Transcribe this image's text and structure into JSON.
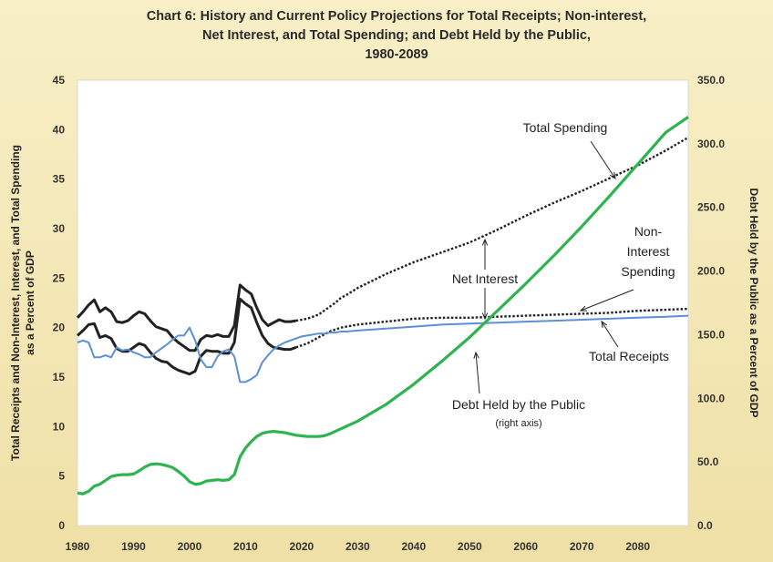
{
  "chart_data": {
    "type": "line",
    "title_lines": [
      "Chart 6:  History and Current Policy Projections for Total Receipts; Non-interest,",
      "Net Interest, and Total Spending; and Debt Held by the Public,",
      "1980-2089"
    ],
    "ylabel_left_lines": [
      "Total Receipts and Non-Interest, Interest, and Total Spending",
      "as a Percent of GDP"
    ],
    "ylabel_right": "Debt Held by the Public as a Percent of GDP",
    "xlim": [
      1980,
      2089
    ],
    "ylim_left": [
      0,
      45
    ],
    "ylim_right": [
      0,
      350
    ],
    "x_ticks": [
      "1980",
      "1990",
      "2000",
      "2010",
      "2020",
      "2030",
      "2040",
      "2050",
      "2060",
      "2070",
      "2080"
    ],
    "y_left_ticks": [
      "0",
      "5",
      "10",
      "15",
      "20",
      "25",
      "30",
      "35",
      "40",
      "45"
    ],
    "y_right_ticks": [
      "0.0",
      "50.0",
      "100.0",
      "150.0",
      "200.0",
      "250.0",
      "300.0",
      "350.0"
    ],
    "grid": false,
    "colors": {
      "total_spending": "#222222",
      "non_interest_spending": "#222222",
      "total_receipts": "#5b8fd6",
      "debt_held_by_public": "#2db34f"
    },
    "series": [
      {
        "key": "total_spending",
        "axis": "left",
        "x": [
          1980,
          1981,
          1982,
          1983,
          1984,
          1985,
          1986,
          1987,
          1988,
          1989,
          1990,
          1991,
          1992,
          1993,
          1994,
          1995,
          1996,
          1997,
          1998,
          1999,
          2000,
          2001,
          2002,
          2003,
          2004,
          2005,
          2006,
          2007,
          2008,
          2009,
          2010,
          2011,
          2012,
          2013,
          2014,
          2015,
          2016,
          2017,
          2018,
          2019,
          2020,
          2021,
          2022,
          2023,
          2024,
          2025,
          2026,
          2027,
          2028,
          2030,
          2035,
          2040,
          2045,
          2050,
          2055,
          2060,
          2065,
          2070,
          2075,
          2080,
          2085,
          2089
        ],
        "values": [
          21.0,
          21.6,
          22.3,
          22.8,
          21.6,
          22.0,
          21.6,
          20.6,
          20.5,
          20.7,
          21.2,
          21.6,
          21.4,
          20.7,
          20.1,
          19.9,
          19.7,
          19.0,
          18.5,
          18.1,
          17.7,
          17.7,
          18.8,
          19.2,
          19.1,
          19.3,
          19.1,
          19.1,
          20.2,
          24.3,
          23.8,
          23.4,
          22.0,
          20.8,
          20.2,
          20.5,
          20.8,
          20.6,
          20.6,
          20.7,
          20.8,
          20.9,
          21.1,
          21.3,
          21.7,
          22.1,
          22.5,
          23.0,
          23.3,
          24.0,
          25.4,
          26.6,
          27.6,
          28.6,
          29.9,
          31.3,
          32.6,
          33.8,
          35.1,
          36.4,
          37.9,
          39.2
        ]
      },
      {
        "key": "non_interest_spending",
        "axis": "left",
        "x": [
          1980,
          1981,
          1982,
          1983,
          1984,
          1985,
          1986,
          1987,
          1988,
          1989,
          1990,
          1991,
          1992,
          1993,
          1994,
          1995,
          1996,
          1997,
          1998,
          1999,
          2000,
          2001,
          2002,
          2003,
          2004,
          2005,
          2006,
          2007,
          2008,
          2009,
          2010,
          2011,
          2012,
          2013,
          2014,
          2015,
          2016,
          2017,
          2018,
          2019,
          2020,
          2021,
          2022,
          2023,
          2024,
          2025,
          2026,
          2027,
          2028,
          2030,
          2035,
          2040,
          2045,
          2050,
          2055,
          2060,
          2065,
          2070,
          2075,
          2080,
          2085,
          2089
        ],
        "values": [
          19.2,
          19.7,
          20.3,
          20.4,
          19.0,
          19.2,
          18.9,
          17.9,
          17.6,
          17.6,
          18.0,
          18.4,
          18.2,
          17.5,
          16.9,
          16.6,
          16.5,
          16.0,
          15.7,
          15.5,
          15.3,
          15.6,
          17.1,
          17.7,
          17.6,
          17.6,
          17.4,
          17.4,
          18.5,
          22.9,
          22.4,
          22.0,
          20.5,
          19.2,
          18.4,
          18.0,
          17.9,
          17.8,
          17.8,
          18.0,
          18.2,
          18.4,
          18.7,
          19.0,
          19.3,
          19.6,
          19.8,
          20.0,
          20.1,
          20.3,
          20.6,
          20.9,
          21.0,
          21.0,
          21.1,
          21.2,
          21.3,
          21.4,
          21.5,
          21.7,
          21.8,
          21.9
        ]
      },
      {
        "key": "total_receipts",
        "axis": "left",
        "x": [
          1980,
          1981,
          1982,
          1983,
          1984,
          1985,
          1986,
          1987,
          1988,
          1989,
          1990,
          1991,
          1992,
          1993,
          1994,
          1995,
          1996,
          1997,
          1998,
          1999,
          2000,
          2001,
          2002,
          2003,
          2004,
          2005,
          2006,
          2007,
          2008,
          2009,
          2010,
          2011,
          2012,
          2013,
          2014,
          2015,
          2016,
          2017,
          2018,
          2019,
          2020,
          2021,
          2022,
          2023,
          2024,
          2025,
          2026,
          2027,
          2028,
          2030,
          2035,
          2040,
          2045,
          2050,
          2055,
          2060,
          2065,
          2070,
          2075,
          2080,
          2085,
          2089
        ],
        "values": [
          18.5,
          18.7,
          18.5,
          17.0,
          17.0,
          17.2,
          17.0,
          18.0,
          17.7,
          17.8,
          17.5,
          17.3,
          17.0,
          17.0,
          17.5,
          17.9,
          18.3,
          18.8,
          19.2,
          19.2,
          20.0,
          18.7,
          16.8,
          16.0,
          16.0,
          17.1,
          17.6,
          17.8,
          17.1,
          14.5,
          14.5,
          14.8,
          15.2,
          16.5,
          17.2,
          17.8,
          18.2,
          18.5,
          18.7,
          18.9,
          19.1,
          19.2,
          19.3,
          19.4,
          19.4,
          19.5,
          19.5,
          19.6,
          19.6,
          19.7,
          19.9,
          20.1,
          20.3,
          20.4,
          20.5,
          20.6,
          20.7,
          20.8,
          20.9,
          21.0,
          21.1,
          21.2
        ]
      },
      {
        "key": "debt_held_by_public",
        "axis": "right",
        "x": [
          1980,
          1981,
          1982,
          1983,
          1984,
          1985,
          1986,
          1987,
          1988,
          1989,
          1990,
          1991,
          1992,
          1993,
          1994,
          1995,
          1996,
          1997,
          1998,
          1999,
          2000,
          2001,
          2002,
          2003,
          2004,
          2005,
          2006,
          2007,
          2008,
          2009,
          2010,
          2011,
          2012,
          2013,
          2014,
          2015,
          2016,
          2017,
          2018,
          2019,
          2020,
          2021,
          2022,
          2023,
          2024,
          2025,
          2026,
          2027,
          2028,
          2030,
          2035,
          2040,
          2045,
          2050,
          2055,
          2060,
          2065,
          2070,
          2075,
          2080,
          2085,
          2089
        ],
        "values": [
          25.5,
          25.0,
          27.0,
          31.0,
          32.5,
          35.5,
          38.5,
          39.5,
          40.0,
          40.0,
          40.5,
          43.0,
          46.0,
          48.0,
          48.5,
          48.0,
          47.0,
          45.5,
          42.5,
          39.0,
          34.5,
          32.5,
          33.0,
          35.0,
          35.5,
          36.0,
          35.5,
          36.0,
          40.0,
          54.0,
          61.0,
          66.0,
          70.0,
          72.5,
          73.5,
          74.0,
          73.5,
          73.0,
          72.0,
          71.0,
          70.5,
          70.0,
          70.0,
          70.0,
          70.5,
          72.0,
          74.0,
          76.0,
          78.0,
          82.0,
          95.0,
          111.0,
          129.0,
          148.0,
          169.0,
          190.0,
          212.0,
          235.0,
          259.0,
          284.0,
          309.0,
          321.0
        ]
      }
    ],
    "annotations": [
      {
        "key": "total_spending",
        "lines": [
          "Total Spending"
        ],
        "note": ""
      },
      {
        "key": "net_interest",
        "lines": [
          "Net Interest"
        ],
        "note": ""
      },
      {
        "key": "non_interest_spending",
        "lines": [
          "Non-",
          "Interest",
          "Spending"
        ],
        "note": ""
      },
      {
        "key": "total_receipts",
        "lines": [
          "Total Receipts"
        ],
        "note": ""
      },
      {
        "key": "debt_held_by_public",
        "lines": [
          "Debt Held by the Public"
        ],
        "note": "(right axis)"
      }
    ]
  }
}
